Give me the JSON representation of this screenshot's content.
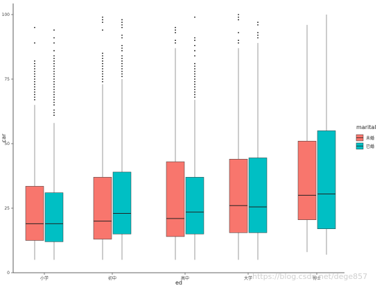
{
  "chart_data": {
    "type": "boxplot",
    "xlabel": "ed",
    "ylabel": "car",
    "ylim": [
      0,
      100
    ],
    "yticks": [
      0,
      25,
      50,
      75,
      100
    ],
    "categories": [
      "小学",
      "初中",
      "高中",
      "大学",
      "博士"
    ],
    "legend": {
      "title": "marital",
      "placement": "right",
      "entries": [
        {
          "key": "unmarried",
          "label": "未婚",
          "color": "#F8766D"
        },
        {
          "key": "married",
          "label": "已婚",
          "color": "#00BFC4"
        }
      ]
    },
    "grid": false,
    "series": [
      {
        "name": "未婚",
        "color": "#F8766D",
        "boxes": [
          {
            "min": 5,
            "q1": 12.5,
            "median": 19,
            "q3": 33.5,
            "max": 65,
            "outliers": [
              67,
              68,
              69,
              70,
              71,
              72,
              73,
              74,
              75,
              76,
              77,
              78,
              79,
              80,
              81,
              82,
              89,
              95
            ]
          },
          {
            "min": 5,
            "q1": 13,
            "median": 20,
            "q3": 37,
            "max": 73,
            "outliers": [
              74,
              75,
              76,
              77,
              78,
              79,
              80,
              81,
              82,
              83,
              84,
              85,
              94,
              97,
              98,
              99
            ]
          },
          {
            "min": 5,
            "q1": 14,
            "median": 21,
            "q3": 43,
            "max": 87,
            "outliers": [
              89,
              90,
              93,
              94,
              95
            ]
          },
          {
            "min": 5,
            "q1": 15.5,
            "median": 26,
            "q3": 44,
            "max": 87,
            "outliers": [
              89,
              90,
              93,
              98,
              99,
              100
            ]
          },
          {
            "min": 8,
            "q1": 20.5,
            "median": 30,
            "q3": 51,
            "max": 96,
            "outliers": []
          }
        ]
      },
      {
        "name": "已婚",
        "color": "#00BFC4",
        "boxes": [
          {
            "min": 5,
            "q1": 12,
            "median": 19,
            "q3": 31,
            "max": 58,
            "outliers": [
              61,
              62,
              63,
              65,
              66,
              67,
              68,
              69,
              70,
              71,
              72,
              73,
              74,
              75,
              76,
              77,
              78,
              79,
              80,
              81,
              82,
              83,
              84,
              86,
              89,
              91,
              94
            ]
          },
          {
            "min": 5,
            "q1": 15,
            "median": 23,
            "q3": 39,
            "max": 75,
            "outliers": [
              76,
              77,
              78,
              79,
              80,
              81,
              82,
              83,
              84,
              86,
              87,
              88,
              91,
              92,
              95,
              96,
              97,
              98
            ]
          },
          {
            "min": 5,
            "q1": 15,
            "median": 23.5,
            "q3": 37,
            "max": 67,
            "outliers": [
              68,
              69,
              70,
              71,
              72,
              73,
              74,
              75,
              76,
              77,
              78,
              79,
              80,
              81,
              84,
              86,
              88,
              90,
              91,
              99
            ]
          },
          {
            "min": 5,
            "q1": 15.5,
            "median": 25.5,
            "q3": 44.5,
            "max": 89,
            "outliers": [
              91,
              92,
              93,
              96,
              97
            ]
          },
          {
            "min": 7,
            "q1": 17,
            "median": 30.5,
            "q3": 55,
            "max": 100,
            "outliers": []
          }
        ]
      }
    ]
  },
  "watermark": "https://blog.csdn.net/dege857"
}
